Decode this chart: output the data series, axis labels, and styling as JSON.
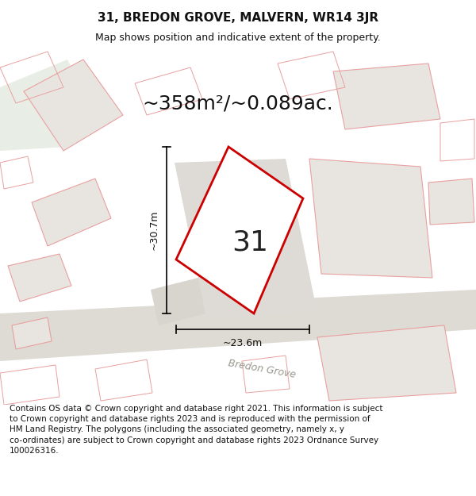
{
  "title": "31, BREDON GROVE, MALVERN, WR14 3JR",
  "subtitle": "Map shows position and indicative extent of the property.",
  "area_text": "~358m²/~0.089ac.",
  "number_label": "31",
  "dim_width": "~23.6m",
  "dim_height": "~30.7m",
  "street_label": "Bredon Grove",
  "footer_line1": "Contains OS data © Crown copyright and database right 2021. This information is subject",
  "footer_line2": "to Crown copyright and database rights 2023 and is reproduced with the permission of",
  "footer_line3": "HM Land Registry. The polygons (including the associated geometry, namely x, y",
  "footer_line4": "co-ordinates) are subject to Crown copyright and database rights 2023 Ordnance Survey",
  "footer_line5": "100026316.",
  "map_bg": "#f0eeeb",
  "plot_fill": "#ffffff",
  "plot_edge": "#cc0000",
  "neighbor_fill": "#e8e5e0",
  "neighbor_edge": "#e8a0a0",
  "road_fill": "#dedad4",
  "title_fontsize": 11,
  "subtitle_fontsize": 9,
  "area_fontsize": 18,
  "footer_fontsize": 7.5,
  "number_fontsize": 26
}
